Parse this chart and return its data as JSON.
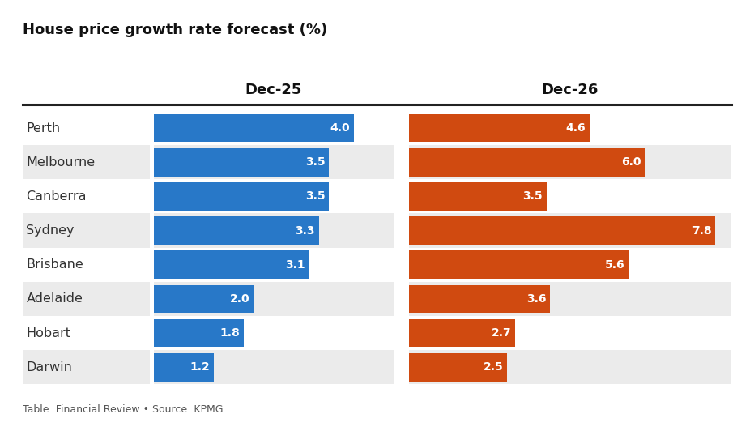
{
  "title": "House price growth rate forecast (%)",
  "footer": "Table: Financial Review • Source: KPMG",
  "cities": [
    "Perth",
    "Melbourne",
    "Canberra",
    "Sydney",
    "Brisbane",
    "Adelaide",
    "Hobart",
    "Darwin"
  ],
  "dec25_values": [
    4.0,
    3.5,
    3.5,
    3.3,
    3.1,
    2.0,
    1.8,
    1.2
  ],
  "dec26_values": [
    4.6,
    6.0,
    3.5,
    7.8,
    5.6,
    3.6,
    2.7,
    2.5
  ],
  "col1_label": "Dec-25",
  "col2_label": "Dec-26",
  "bar_color_25": "#2878C8",
  "bar_color_26": "#D04A10",
  "bg_color_row_even": "#FFFFFF",
  "bg_color_row_odd": "#EBEBEB",
  "max_val_25": 4.8,
  "max_val_26": 8.2,
  "title_fontsize": 13,
  "label_fontsize": 11.5,
  "value_fontsize": 10,
  "footer_fontsize": 9,
  "col_header_fontsize": 13
}
